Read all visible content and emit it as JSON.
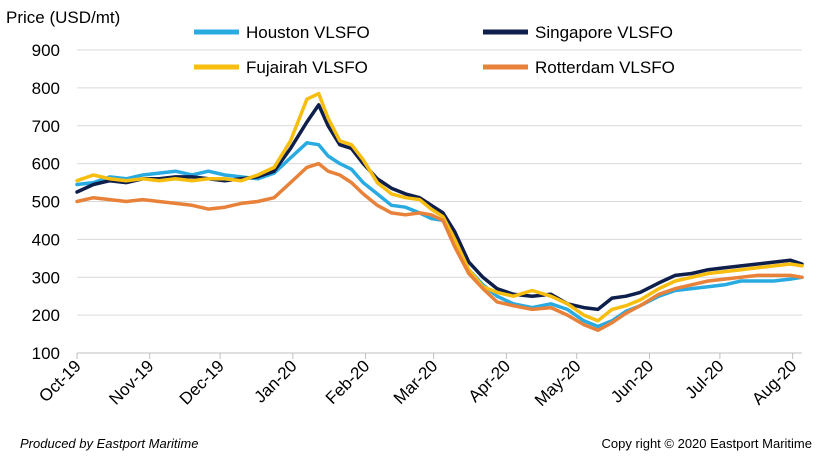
{
  "chart_data": {
    "type": "line",
    "ylabel": "Price (USD/mt)",
    "ylim": [
      100,
      900
    ],
    "yticks": [
      100,
      200,
      300,
      400,
      500,
      600,
      700,
      800,
      900
    ],
    "xlim": [
      "2019-10-01",
      "2020-08-05"
    ],
    "xticks": [
      {
        "date": "2019-10-01",
        "label": "Oct-19"
      },
      {
        "date": "2019-11-01",
        "label": "Nov-19"
      },
      {
        "date": "2019-12-01",
        "label": "Dec-19"
      },
      {
        "date": "2020-01-01",
        "label": "Jan-20"
      },
      {
        "date": "2020-02-01",
        "label": "Feb-20"
      },
      {
        "date": "2020-03-01",
        "label": "Mar-20"
      },
      {
        "date": "2020-04-01",
        "label": "Apr-20"
      },
      {
        "date": "2020-05-01",
        "label": "May-20"
      },
      {
        "date": "2020-06-01",
        "label": "Jun-20"
      },
      {
        "date": "2020-07-01",
        "label": "Jul-20"
      },
      {
        "date": "2020-08-01",
        "label": "Aug-20"
      }
    ],
    "grid": "horizontal",
    "legend_position": "top",
    "series": [
      {
        "name": "Houston VLSFO",
        "color": "#29abe2",
        "points": [
          [
            "2019-10-01",
            545
          ],
          [
            "2019-10-08",
            550
          ],
          [
            "2019-10-15",
            565
          ],
          [
            "2019-10-22",
            560
          ],
          [
            "2019-10-29",
            570
          ],
          [
            "2019-11-05",
            575
          ],
          [
            "2019-11-12",
            580
          ],
          [
            "2019-11-19",
            570
          ],
          [
            "2019-11-26",
            580
          ],
          [
            "2019-12-03",
            570
          ],
          [
            "2019-12-10",
            565
          ],
          [
            "2019-12-17",
            560
          ],
          [
            "2019-12-24",
            575
          ],
          [
            "2019-12-31",
            615
          ],
          [
            "2020-01-07",
            655
          ],
          [
            "2020-01-12",
            650
          ],
          [
            "2020-01-16",
            620
          ],
          [
            "2020-01-21",
            600
          ],
          [
            "2020-01-26",
            585
          ],
          [
            "2020-01-31",
            550
          ],
          [
            "2020-02-06",
            520
          ],
          [
            "2020-02-12",
            490
          ],
          [
            "2020-02-18",
            485
          ],
          [
            "2020-02-24",
            470
          ],
          [
            "2020-02-29",
            455
          ],
          [
            "2020-03-05",
            450
          ],
          [
            "2020-03-10",
            400
          ],
          [
            "2020-03-16",
            320
          ],
          [
            "2020-03-22",
            280
          ],
          [
            "2020-03-28",
            250
          ],
          [
            "2020-04-04",
            230
          ],
          [
            "2020-04-12",
            220
          ],
          [
            "2020-04-20",
            230
          ],
          [
            "2020-04-27",
            215
          ],
          [
            "2020-05-04",
            185
          ],
          [
            "2020-05-10",
            170
          ],
          [
            "2020-05-16",
            185
          ],
          [
            "2020-05-22",
            210
          ],
          [
            "2020-05-28",
            225
          ],
          [
            "2020-06-05",
            250
          ],
          [
            "2020-06-12",
            265
          ],
          [
            "2020-06-19",
            270
          ],
          [
            "2020-06-26",
            275
          ],
          [
            "2020-07-03",
            280
          ],
          [
            "2020-07-10",
            290
          ],
          [
            "2020-07-17",
            290
          ],
          [
            "2020-07-24",
            290
          ],
          [
            "2020-07-31",
            295
          ],
          [
            "2020-08-05",
            300
          ]
        ]
      },
      {
        "name": "Singapore VLSFO",
        "color": "#0f1f4b",
        "points": [
          [
            "2019-10-01",
            525
          ],
          [
            "2019-10-08",
            545
          ],
          [
            "2019-10-15",
            555
          ],
          [
            "2019-10-22",
            550
          ],
          [
            "2019-10-29",
            560
          ],
          [
            "2019-11-05",
            560
          ],
          [
            "2019-11-12",
            565
          ],
          [
            "2019-11-19",
            565
          ],
          [
            "2019-11-26",
            560
          ],
          [
            "2019-12-03",
            555
          ],
          [
            "2019-12-10",
            560
          ],
          [
            "2019-12-17",
            565
          ],
          [
            "2019-12-24",
            580
          ],
          [
            "2019-12-31",
            640
          ],
          [
            "2020-01-07",
            710
          ],
          [
            "2020-01-12",
            755
          ],
          [
            "2020-01-16",
            700
          ],
          [
            "2020-01-21",
            650
          ],
          [
            "2020-01-26",
            640
          ],
          [
            "2020-01-31",
            600
          ],
          [
            "2020-02-06",
            560
          ],
          [
            "2020-02-12",
            535
          ],
          [
            "2020-02-18",
            520
          ],
          [
            "2020-02-24",
            510
          ],
          [
            "2020-02-29",
            490
          ],
          [
            "2020-03-05",
            470
          ],
          [
            "2020-03-10",
            420
          ],
          [
            "2020-03-16",
            340
          ],
          [
            "2020-03-22",
            300
          ],
          [
            "2020-03-28",
            270
          ],
          [
            "2020-04-04",
            255
          ],
          [
            "2020-04-12",
            250
          ],
          [
            "2020-04-20",
            255
          ],
          [
            "2020-04-27",
            230
          ],
          [
            "2020-05-04",
            220
          ],
          [
            "2020-05-10",
            215
          ],
          [
            "2020-05-16",
            245
          ],
          [
            "2020-05-22",
            250
          ],
          [
            "2020-05-28",
            260
          ],
          [
            "2020-06-05",
            285
          ],
          [
            "2020-06-12",
            305
          ],
          [
            "2020-06-19",
            310
          ],
          [
            "2020-06-26",
            320
          ],
          [
            "2020-07-03",
            325
          ],
          [
            "2020-07-10",
            330
          ],
          [
            "2020-07-17",
            335
          ],
          [
            "2020-07-24",
            340
          ],
          [
            "2020-07-31",
            345
          ],
          [
            "2020-08-05",
            335
          ]
        ]
      },
      {
        "name": "Fujairah VLSFO",
        "color": "#f7be0f",
        "points": [
          [
            "2019-10-01",
            555
          ],
          [
            "2019-10-08",
            570
          ],
          [
            "2019-10-15",
            560
          ],
          [
            "2019-10-22",
            555
          ],
          [
            "2019-10-29",
            560
          ],
          [
            "2019-11-05",
            555
          ],
          [
            "2019-11-12",
            560
          ],
          [
            "2019-11-19",
            555
          ],
          [
            "2019-11-26",
            560
          ],
          [
            "2019-12-03",
            560
          ],
          [
            "2019-12-10",
            555
          ],
          [
            "2019-12-17",
            570
          ],
          [
            "2019-12-24",
            590
          ],
          [
            "2019-12-31",
            660
          ],
          [
            "2020-01-07",
            770
          ],
          [
            "2020-01-12",
            785
          ],
          [
            "2020-01-16",
            720
          ],
          [
            "2020-01-21",
            660
          ],
          [
            "2020-01-26",
            650
          ],
          [
            "2020-01-31",
            610
          ],
          [
            "2020-02-06",
            550
          ],
          [
            "2020-02-12",
            520
          ],
          [
            "2020-02-18",
            510
          ],
          [
            "2020-02-24",
            505
          ],
          [
            "2020-02-29",
            480
          ],
          [
            "2020-03-05",
            460
          ],
          [
            "2020-03-10",
            400
          ],
          [
            "2020-03-16",
            320
          ],
          [
            "2020-03-22",
            275
          ],
          [
            "2020-03-28",
            260
          ],
          [
            "2020-04-04",
            250
          ],
          [
            "2020-04-12",
            265
          ],
          [
            "2020-04-20",
            250
          ],
          [
            "2020-04-27",
            230
          ],
          [
            "2020-05-04",
            200
          ],
          [
            "2020-05-10",
            185
          ],
          [
            "2020-05-16",
            215
          ],
          [
            "2020-05-22",
            225
          ],
          [
            "2020-05-28",
            240
          ],
          [
            "2020-06-05",
            270
          ],
          [
            "2020-06-12",
            290
          ],
          [
            "2020-06-19",
            300
          ],
          [
            "2020-06-26",
            310
          ],
          [
            "2020-07-03",
            315
          ],
          [
            "2020-07-10",
            320
          ],
          [
            "2020-07-17",
            325
          ],
          [
            "2020-07-24",
            330
          ],
          [
            "2020-07-31",
            335
          ],
          [
            "2020-08-05",
            330
          ]
        ]
      },
      {
        "name": "Rotterdam VLSFO",
        "color": "#e8823a",
        "points": [
          [
            "2019-10-01",
            500
          ],
          [
            "2019-10-08",
            510
          ],
          [
            "2019-10-15",
            505
          ],
          [
            "2019-10-22",
            500
          ],
          [
            "2019-10-29",
            505
          ],
          [
            "2019-11-05",
            500
          ],
          [
            "2019-11-12",
            495
          ],
          [
            "2019-11-19",
            490
          ],
          [
            "2019-11-26",
            480
          ],
          [
            "2019-12-03",
            485
          ],
          [
            "2019-12-10",
            495
          ],
          [
            "2019-12-17",
            500
          ],
          [
            "2019-12-24",
            510
          ],
          [
            "2019-12-31",
            550
          ],
          [
            "2020-01-07",
            590
          ],
          [
            "2020-01-12",
            600
          ],
          [
            "2020-01-16",
            580
          ],
          [
            "2020-01-21",
            570
          ],
          [
            "2020-01-26",
            550
          ],
          [
            "2020-01-31",
            520
          ],
          [
            "2020-02-06",
            490
          ],
          [
            "2020-02-12",
            470
          ],
          [
            "2020-02-18",
            465
          ],
          [
            "2020-02-24",
            470
          ],
          [
            "2020-02-29",
            465
          ],
          [
            "2020-03-05",
            450
          ],
          [
            "2020-03-10",
            380
          ],
          [
            "2020-03-16",
            310
          ],
          [
            "2020-03-22",
            270
          ],
          [
            "2020-03-28",
            235
          ],
          [
            "2020-04-04",
            225
          ],
          [
            "2020-04-12",
            215
          ],
          [
            "2020-04-20",
            220
          ],
          [
            "2020-04-27",
            200
          ],
          [
            "2020-05-04",
            175
          ],
          [
            "2020-05-10",
            160
          ],
          [
            "2020-05-16",
            180
          ],
          [
            "2020-05-22",
            205
          ],
          [
            "2020-05-28",
            225
          ],
          [
            "2020-06-05",
            255
          ],
          [
            "2020-06-12",
            270
          ],
          [
            "2020-06-19",
            280
          ],
          [
            "2020-06-26",
            290
          ],
          [
            "2020-07-03",
            295
          ],
          [
            "2020-07-10",
            300
          ],
          [
            "2020-07-17",
            305
          ],
          [
            "2020-07-24",
            305
          ],
          [
            "2020-07-31",
            305
          ],
          [
            "2020-08-05",
            300
          ]
        ]
      }
    ]
  },
  "footer": {
    "left": "Produced  by Eastport Maritime",
    "right": "Copy right © 2020 Eastport Maritime"
  }
}
